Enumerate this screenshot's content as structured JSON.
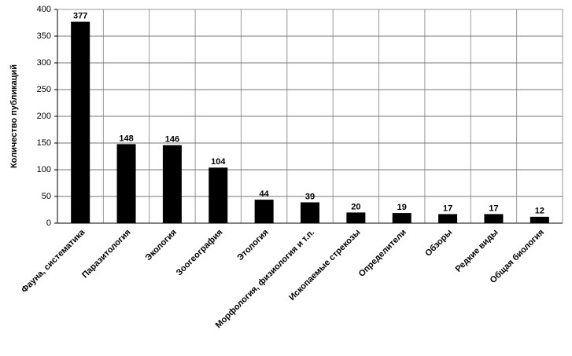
{
  "chart_data": {
    "type": "bar",
    "y_label": "Количество публикаций",
    "categories": [
      "Фауна, систематика",
      "Паразитология",
      "Экология",
      "Зоогеография",
      "Этология",
      "Морфология, физиология и т.п.",
      "Ископаемые стрекозы",
      "Определители",
      "Обзоры",
      "Редкие виды",
      "Общая биология"
    ],
    "values": [
      377,
      148,
      146,
      104,
      44,
      39,
      20,
      19,
      17,
      17,
      12
    ],
    "color": "#000000",
    "ylim": [
      0,
      400
    ],
    "yticks": [
      0,
      50,
      100,
      150,
      200,
      250,
      300,
      350,
      400
    ],
    "grid": true
  }
}
